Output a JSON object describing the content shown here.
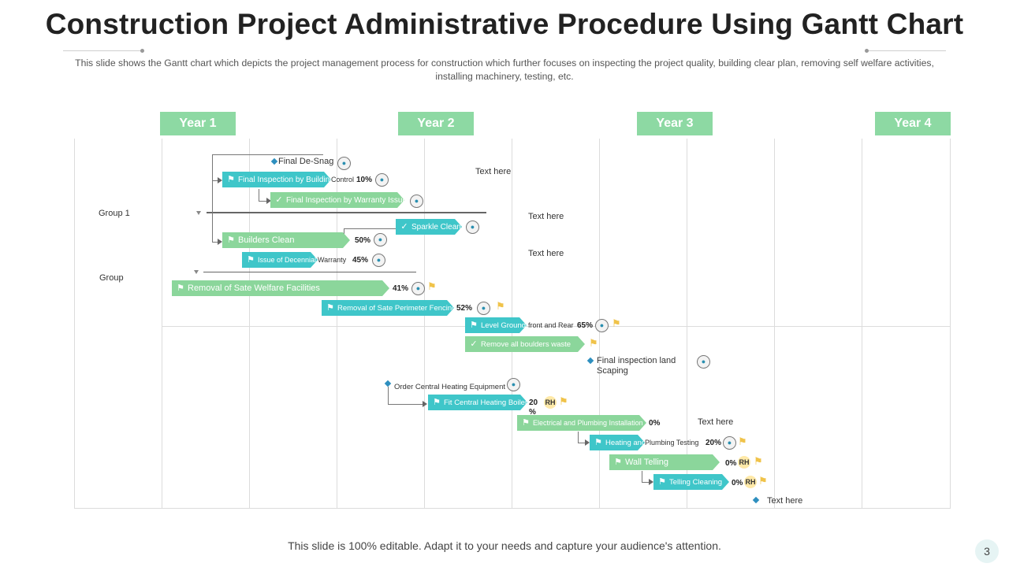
{
  "title": "Construction Project Administrative Procedure Using Gantt Chart",
  "subtitle": "This slide shows the Gantt chart which depicts the project management process for construction which further focuses on inspecting the project quality, building clear plan, removing self welfare activities, installing machinery, testing, etc.",
  "years": [
    "Year 1",
    "Year 2",
    "Year 3",
    "Year 4"
  ],
  "groups": [
    "Group 1",
    "Group"
  ],
  "text_notes": [
    "Text here",
    "Text here",
    "Text here",
    "Text here",
    "Text here"
  ],
  "milestones": {
    "final_de_snag": "Final De-Snag",
    "final_inspection_land": "Final inspection land Scaping",
    "order_heating": "Order Central Heating Equipment"
  },
  "tasks": [
    {
      "id": "t1",
      "label": "Final Inspection by Building",
      "suffix": "Control",
      "pct": "10%",
      "color": "teal",
      "icon": "flag"
    },
    {
      "id": "t2",
      "label": "Final Inspection by Warranty Issues",
      "suffix": "",
      "pct": "",
      "color": "green",
      "icon": "check"
    },
    {
      "id": "t3",
      "label": "Sparkle Clean",
      "suffix": "",
      "pct": "",
      "color": "teal",
      "icon": "check"
    },
    {
      "id": "t4",
      "label": "Builders Clean",
      "suffix": "",
      "pct": "50%",
      "color": "green",
      "icon": "flag"
    },
    {
      "id": "t5",
      "label": "Issue of Decennial",
      "suffix": "Warranty",
      "pct": "45%",
      "color": "teal",
      "icon": "flag"
    },
    {
      "id": "t6",
      "label": "Removal of Sate Welfare Facilities",
      "suffix": "",
      "pct": "41%",
      "color": "green",
      "icon": "flag"
    },
    {
      "id": "t7",
      "label": "Removal of Sate Perimeter Fencing",
      "suffix": "",
      "pct": "52%",
      "color": "teal",
      "icon": "flag"
    },
    {
      "id": "t8",
      "label": "Level Grounds",
      "suffix": "front and Rear",
      "pct": "65%",
      "color": "teal",
      "icon": "flag"
    },
    {
      "id": "t9",
      "label": "Remove all boulders waste",
      "suffix": "",
      "pct": "",
      "color": "green",
      "icon": "check"
    },
    {
      "id": "t10",
      "label": "Fit Central Heating Boiler",
      "suffix": "",
      "pct": "20 %",
      "color": "teal",
      "icon": "flag"
    },
    {
      "id": "t11",
      "label": "Electrical and Plumbing Installation",
      "suffix": "",
      "pct": "0%",
      "color": "green",
      "icon": "flag"
    },
    {
      "id": "t12",
      "label": "Heating and",
      "suffix": "Plumbing Testing",
      "pct": "20%",
      "color": "teal",
      "icon": "flag"
    },
    {
      "id": "t13",
      "label": "Wall Telling",
      "suffix": "",
      "pct": "0%",
      "color": "green",
      "icon": "flag"
    },
    {
      "id": "t14",
      "label": "Telling Cleaning",
      "suffix": "",
      "pct": "0%",
      "color": "teal",
      "icon": "flag"
    }
  ],
  "rh_badge": "RH",
  "footer": "This slide is 100% editable. Adapt it to your needs and capture your audience's attention.",
  "page_number": "3",
  "colors": {
    "teal": "#3fc6c9",
    "green": "#8bd69b",
    "year_header": "#8dd9a3"
  }
}
